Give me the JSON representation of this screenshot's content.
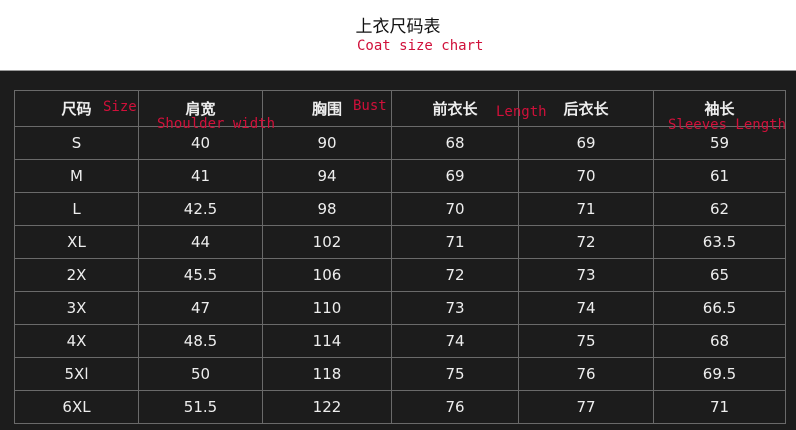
{
  "title": "上衣尺码表",
  "subtitle": "Coat size chart",
  "columns": [
    {
      "zh": "尺码",
      "en": "Size"
    },
    {
      "zh": "肩宽",
      "en": "Shoulder width"
    },
    {
      "zh": "胸围",
      "en": "Bust"
    },
    {
      "zh": "前衣长",
      "en": "Length"
    },
    {
      "zh": "后衣长",
      "en": ""
    },
    {
      "zh": "袖长",
      "en": "Sleeves Length"
    }
  ],
  "rows": [
    [
      "S",
      "40",
      "90",
      "68",
      "69",
      "59"
    ],
    [
      "M",
      "41",
      "94",
      "69",
      "70",
      "61"
    ],
    [
      "L",
      "42.5",
      "98",
      "70",
      "71",
      "62"
    ],
    [
      "XL",
      "44",
      "102",
      "71",
      "72",
      "63.5"
    ],
    [
      "2X",
      "45.5",
      "106",
      "72",
      "73",
      "65"
    ],
    [
      "3X",
      "47",
      "110",
      "73",
      "74",
      "66.5"
    ],
    [
      "4X",
      "48.5",
      "114",
      "74",
      "75",
      "68"
    ],
    [
      "5Xl",
      "50",
      "118",
      "75",
      "76",
      "69.5"
    ],
    [
      "6XL",
      "51.5",
      "122",
      "76",
      "77",
      "71"
    ]
  ]
}
